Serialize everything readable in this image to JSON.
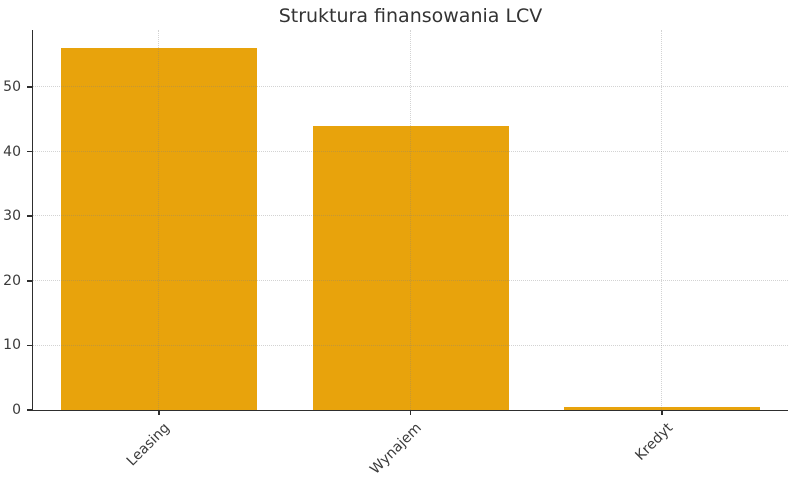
{
  "chart_data": {
    "type": "bar",
    "title": "Struktura finansowania LCV",
    "categories": [
      "Leasing",
      "Wynajem",
      "Kredyt"
    ],
    "values": [
      56,
      44,
      0.5
    ],
    "xlabel": "",
    "ylabel": "",
    "yticks": [
      0,
      10,
      20,
      30,
      40,
      50
    ],
    "ylim": [
      0,
      58.8
    ],
    "grid": true,
    "legend_position": "none",
    "x_tick_rotation_deg": 45,
    "colors": {
      "bar": "#E8A30C",
      "axis": "#2e2e2e",
      "grid": "#c8c8c8",
      "text": "#3a3a3a",
      "title": "#333333",
      "background": "#ffffff"
    }
  }
}
